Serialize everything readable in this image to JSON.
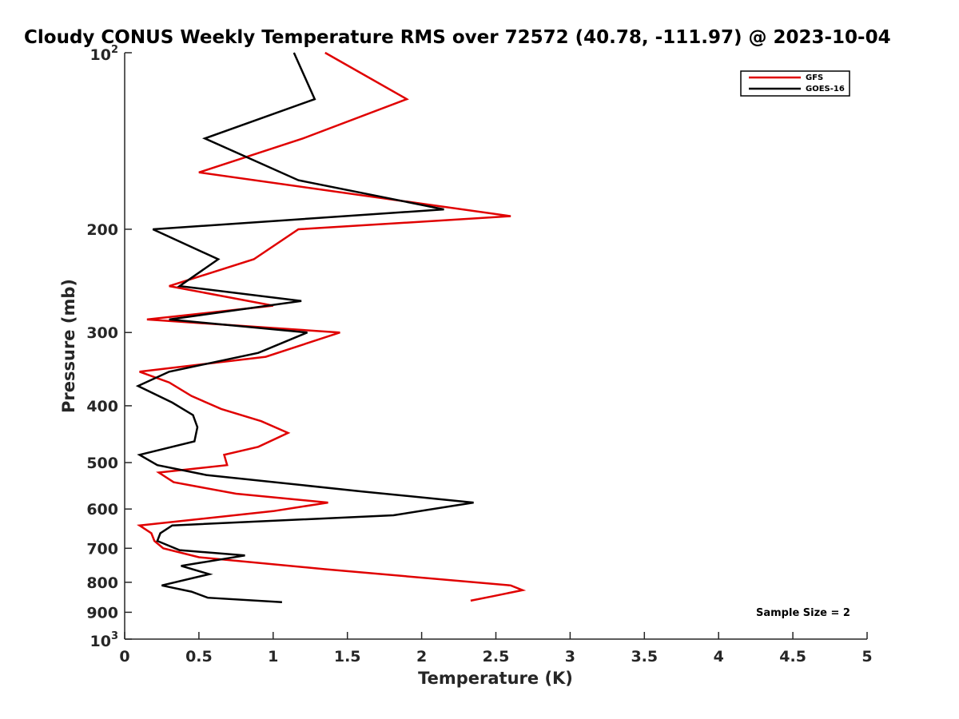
{
  "chart_data": {
    "type": "line",
    "title": "Cloudy CONUS Weekly Temperature RMS over 72572 (40.78, -111.97) @ 2023-10-04",
    "xlabel": "Temperature (K)",
    "ylabel": "Pressure (mb)",
    "xlim": [
      0,
      5
    ],
    "ylim": [
      100,
      1000
    ],
    "y_scale": "log",
    "y_reversed": true,
    "x_ticks": [
      0,
      0.5,
      1,
      1.5,
      2,
      2.5,
      3,
      3.5,
      4,
      4.5,
      5
    ],
    "x_tick_labels": [
      "0",
      "0.5",
      "1",
      "1.5",
      "2",
      "2.5",
      "3",
      "3.5",
      "4",
      "4.5",
      "5"
    ],
    "y_ticks": [
      200,
      300,
      400,
      500,
      600,
      700,
      800,
      900
    ],
    "y_tick_labels": [
      "200",
      "300",
      "400",
      "500",
      "600",
      "700",
      "800",
      "900"
    ],
    "y_decade_ticks": [
      {
        "value": 100,
        "base": "10",
        "exp": "2"
      },
      {
        "value": 1000,
        "base": "10",
        "exp": "3"
      }
    ],
    "legend": {
      "placement": "top-right",
      "entries": [
        {
          "name": "GFS",
          "color": "#e00000"
        },
        {
          "name": "GOES-16",
          "color": "#000000"
        }
      ]
    },
    "annotation": "Sample Size = 2",
    "series": [
      {
        "name": "GFS",
        "color": "#e00000",
        "x": [
          1.35,
          1.9,
          1.2,
          0.5,
          2.6,
          1.17,
          0.87,
          0.3,
          1.0,
          0.15,
          1.45,
          0.95,
          0.1,
          0.3,
          0.45,
          0.65,
          0.92,
          1.1,
          0.9,
          0.67,
          0.69,
          0.23,
          0.33,
          0.75,
          1.37,
          1.0,
          0.1,
          0.18,
          0.2,
          0.26,
          0.5,
          1.35,
          2.6,
          2.68,
          2.48,
          2.33
        ],
        "y": [
          100,
          120,
          140,
          160,
          190,
          200,
          225,
          250,
          270,
          285,
          300,
          330,
          350,
          365,
          385,
          405,
          425,
          445,
          470,
          485,
          505,
          520,
          540,
          565,
          585,
          605,
          640,
          660,
          680,
          700,
          725,
          760,
          810,
          825,
          845,
          860
        ]
      },
      {
        "name": "GOES-16",
        "color": "#000000",
        "x": [
          1.14,
          1.28,
          0.54,
          1.17,
          2.15,
          0.19,
          0.63,
          0.37,
          1.19,
          0.3,
          1.23,
          0.9,
          0.3,
          0.09,
          0.32,
          0.46,
          0.49,
          0.47,
          0.1,
          0.22,
          0.55,
          1.6,
          2.35,
          1.81,
          0.32,
          0.24,
          0.22,
          0.37,
          0.81,
          0.38,
          0.57,
          0.25,
          0.45,
          0.56,
          1.06
        ],
        "y": [
          100,
          120,
          140,
          165,
          185,
          200,
          225,
          250,
          265,
          285,
          300,
          325,
          350,
          370,
          395,
          415,
          435,
          460,
          485,
          505,
          525,
          560,
          585,
          615,
          640,
          660,
          680,
          705,
          720,
          750,
          775,
          810,
          830,
          850,
          865
        ]
      }
    ]
  }
}
